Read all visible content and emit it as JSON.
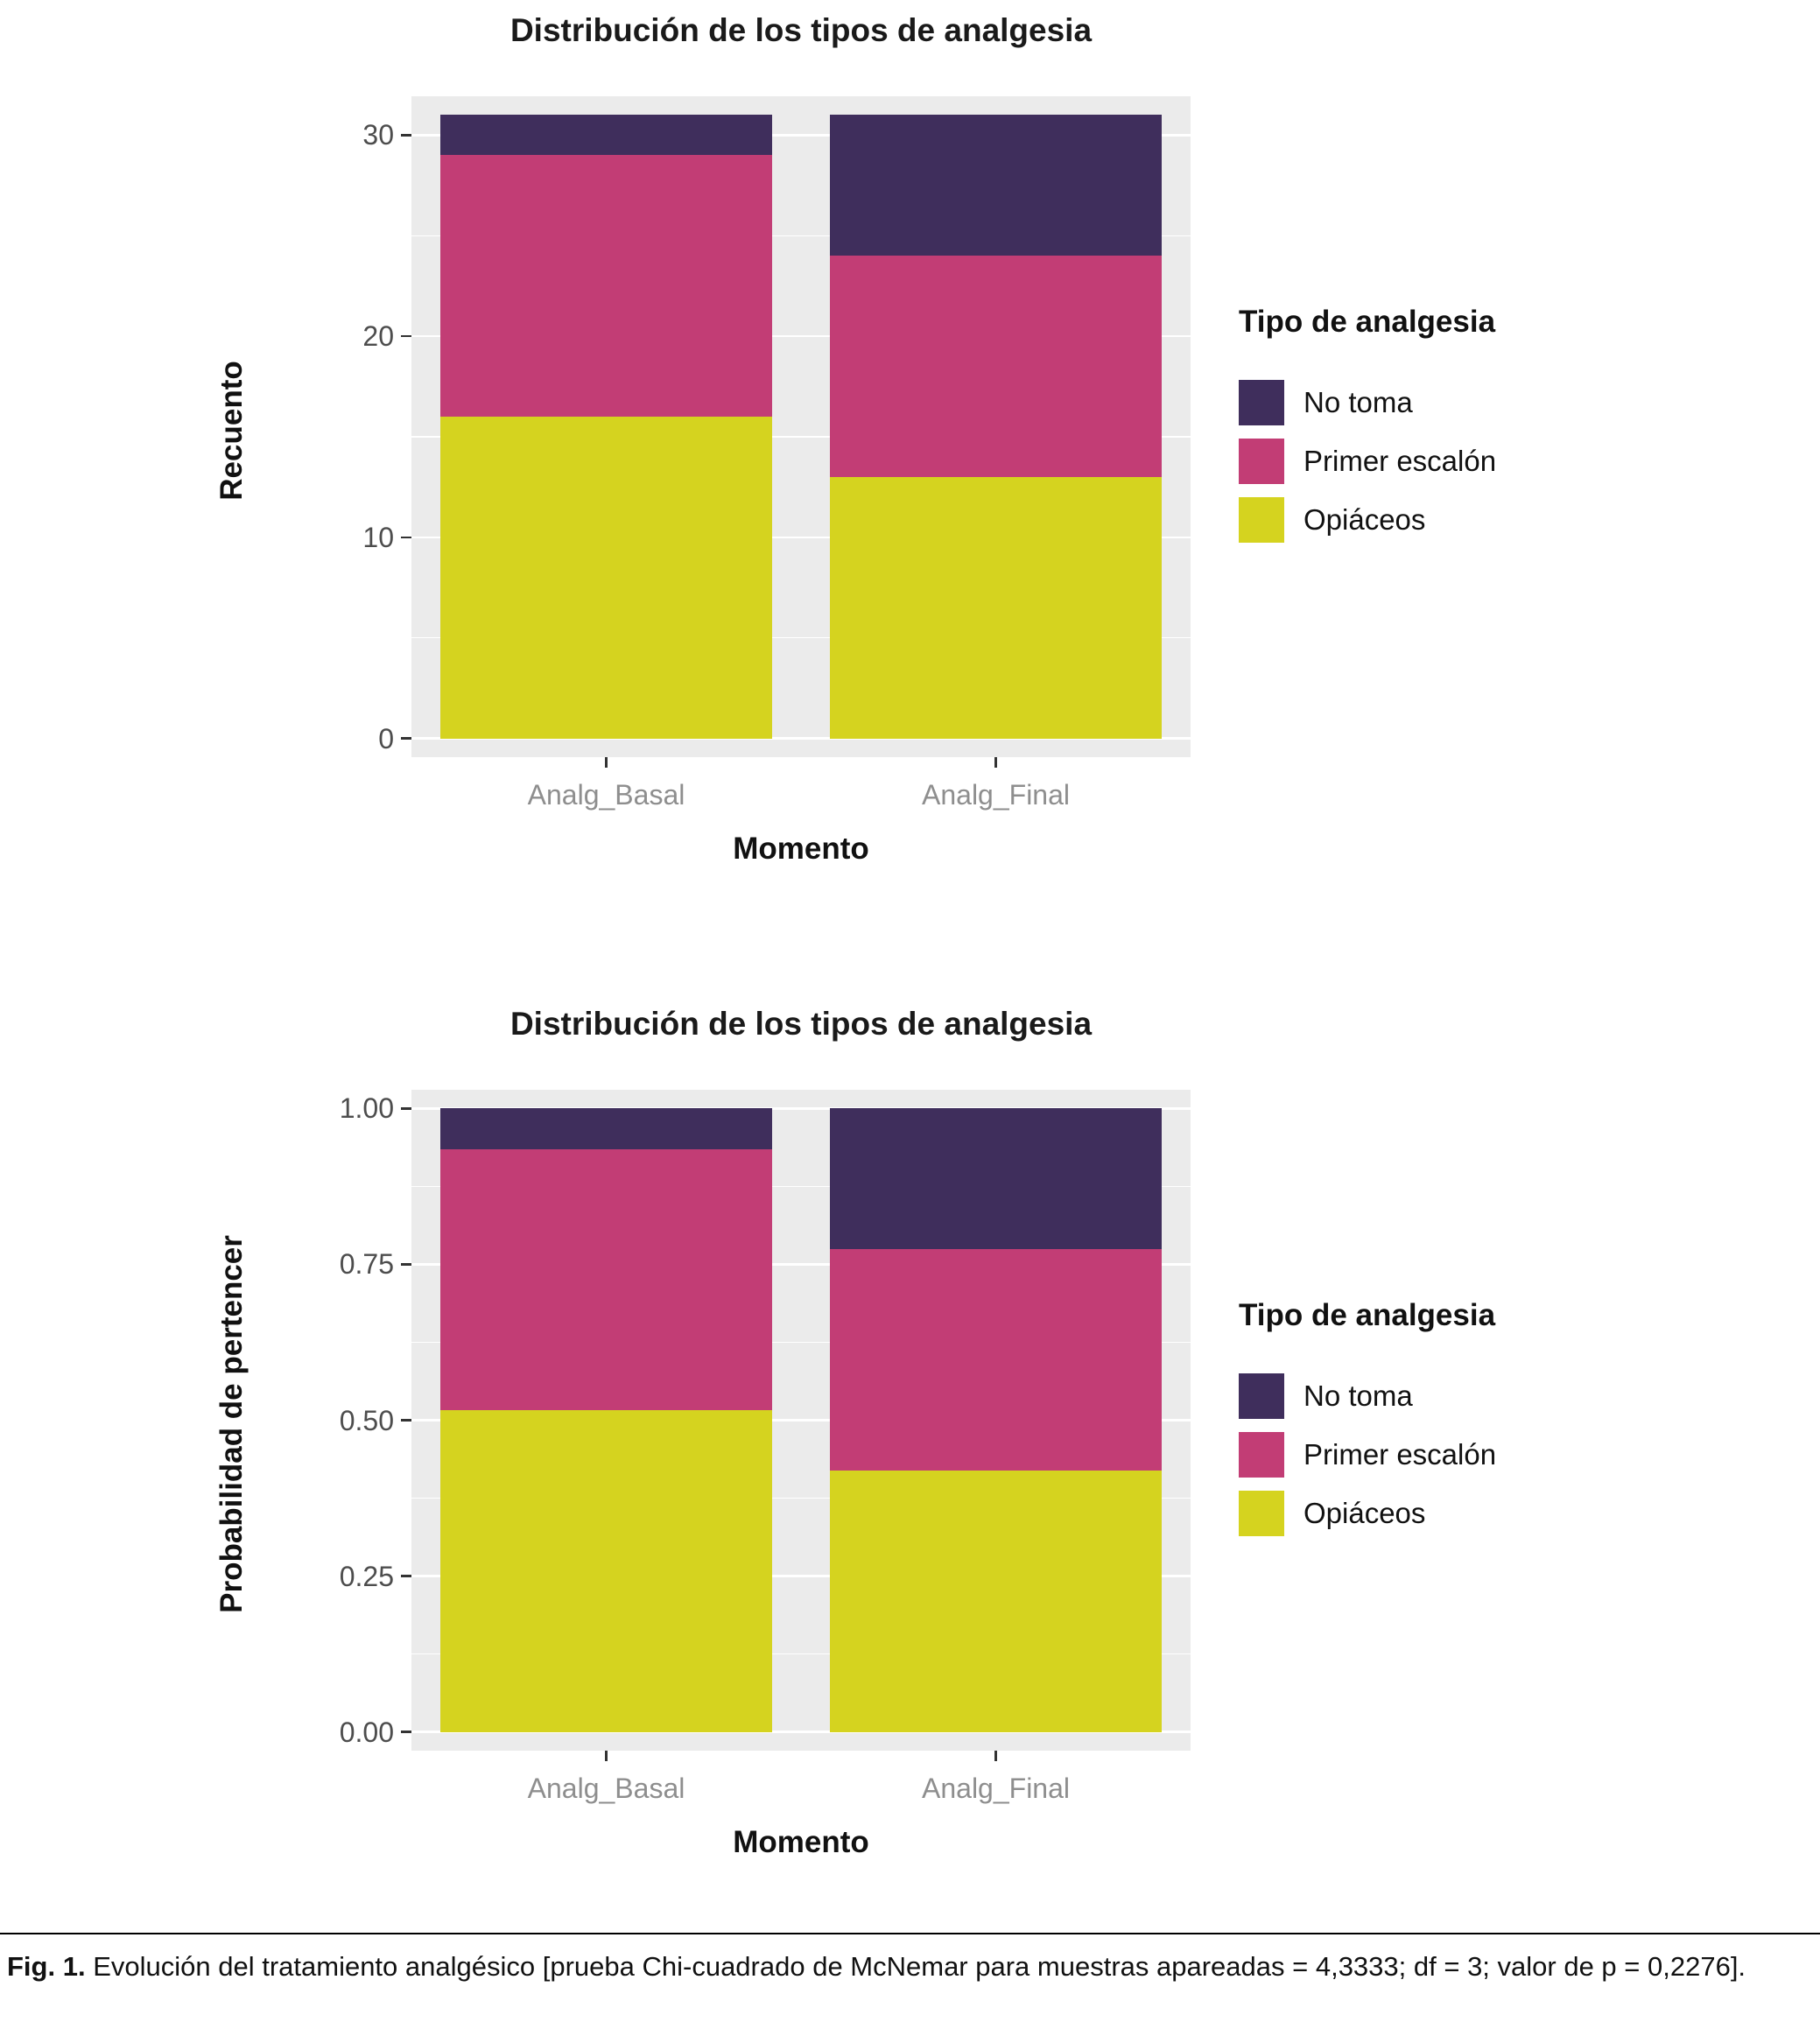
{
  "figure": {
    "caption_prefix": "Fig. 1.",
    "caption_text": "Evolución del tratamiento analgésico [prueba Chi-cuadrado de McNemar para muestras apareadas = 4,3333; df = 3; valor de p = 0,2276]."
  },
  "legend": {
    "title": "Tipo de analgesia",
    "entries": [
      {
        "label": "No toma",
        "color": "#3f2e5c"
      },
      {
        "label": "Primer escalón",
        "color": "#c23d75"
      },
      {
        "label": "Opiáceos",
        "color": "#d5d31f"
      }
    ]
  },
  "colors": {
    "panel_background": "#ebebeb",
    "gridline": "#ffffff",
    "axis_text": "#4d4d4d",
    "category_text": "#8e8e8e"
  },
  "chart_data": [
    {
      "type": "bar",
      "stacked": true,
      "title": "Distribución de los tipos de analgesia",
      "xlabel": "Momento",
      "ylabel": "Recuento",
      "categories": [
        "Analg_Basal",
        "Analg_Final"
      ],
      "series": [
        {
          "name": "Opiáceos",
          "color": "#d5d31f",
          "values": [
            16,
            13
          ]
        },
        {
          "name": "Primer escalón",
          "color": "#c23d75",
          "values": [
            13,
            11
          ]
        },
        {
          "name": "No toma",
          "color": "#3f2e5c",
          "values": [
            2,
            7
          ]
        }
      ],
      "ylim": [
        0,
        31
      ],
      "yticks": [
        0,
        10,
        20,
        30
      ],
      "ytick_labels": [
        "0",
        "10",
        "20",
        "30"
      ],
      "grid": true,
      "legend_position": "right"
    },
    {
      "type": "bar",
      "stacked": true,
      "title": "Distribución de los tipos de analgesia",
      "xlabel": "Momento",
      "ylabel": "Probabilidad de pertencer",
      "categories": [
        "Analg_Basal",
        "Analg_Final"
      ],
      "series": [
        {
          "name": "Opiáceos",
          "color": "#d5d31f",
          "values": [
            0.516,
            0.419
          ]
        },
        {
          "name": "Primer escalón",
          "color": "#c23d75",
          "values": [
            0.419,
            0.355
          ]
        },
        {
          "name": "No toma",
          "color": "#3f2e5c",
          "values": [
            0.065,
            0.226
          ]
        }
      ],
      "ylim": [
        0,
        1
      ],
      "yticks": [
        0,
        0.25,
        0.5,
        0.75,
        1
      ],
      "ytick_labels": [
        "0.00",
        "0.25",
        "0.50",
        "0.75",
        "1.00"
      ],
      "grid": true,
      "legend_position": "right"
    }
  ]
}
